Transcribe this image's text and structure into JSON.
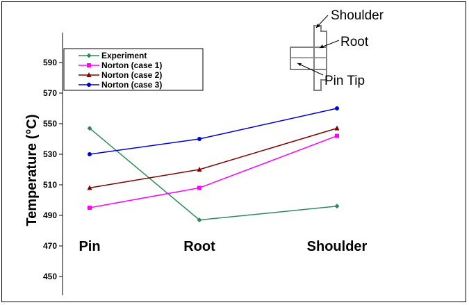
{
  "chart_data": {
    "type": "line",
    "title": "",
    "xlabel": "",
    "ylabel": "Temperature (°C)",
    "categories": [
      "Pin",
      "Root",
      "Shoulder"
    ],
    "ylim": [
      450,
      600
    ],
    "yticks": [
      450,
      470,
      490,
      510,
      530,
      550,
      570,
      590
    ],
    "grid": false,
    "legend_position": "top-left",
    "series": [
      {
        "name": "Experiment",
        "values": [
          547,
          487,
          496
        ],
        "color": "#2e8b57",
        "marker": "diamond"
      },
      {
        "name": "Norton (case 1)",
        "values": [
          495,
          508,
          542
        ],
        "color": "#ff00ff",
        "marker": "square"
      },
      {
        "name": "Norton (case 2)",
        "values": [
          508,
          520,
          547
        ],
        "color": "#800000",
        "marker": "triangle"
      },
      {
        "name": "Norton (case 3)",
        "values": [
          530,
          540,
          560
        ],
        "color": "#0000cc",
        "marker": "circle"
      }
    ],
    "annotations": [
      "Shoulder",
      "Root",
      "Pin Tip"
    ]
  }
}
